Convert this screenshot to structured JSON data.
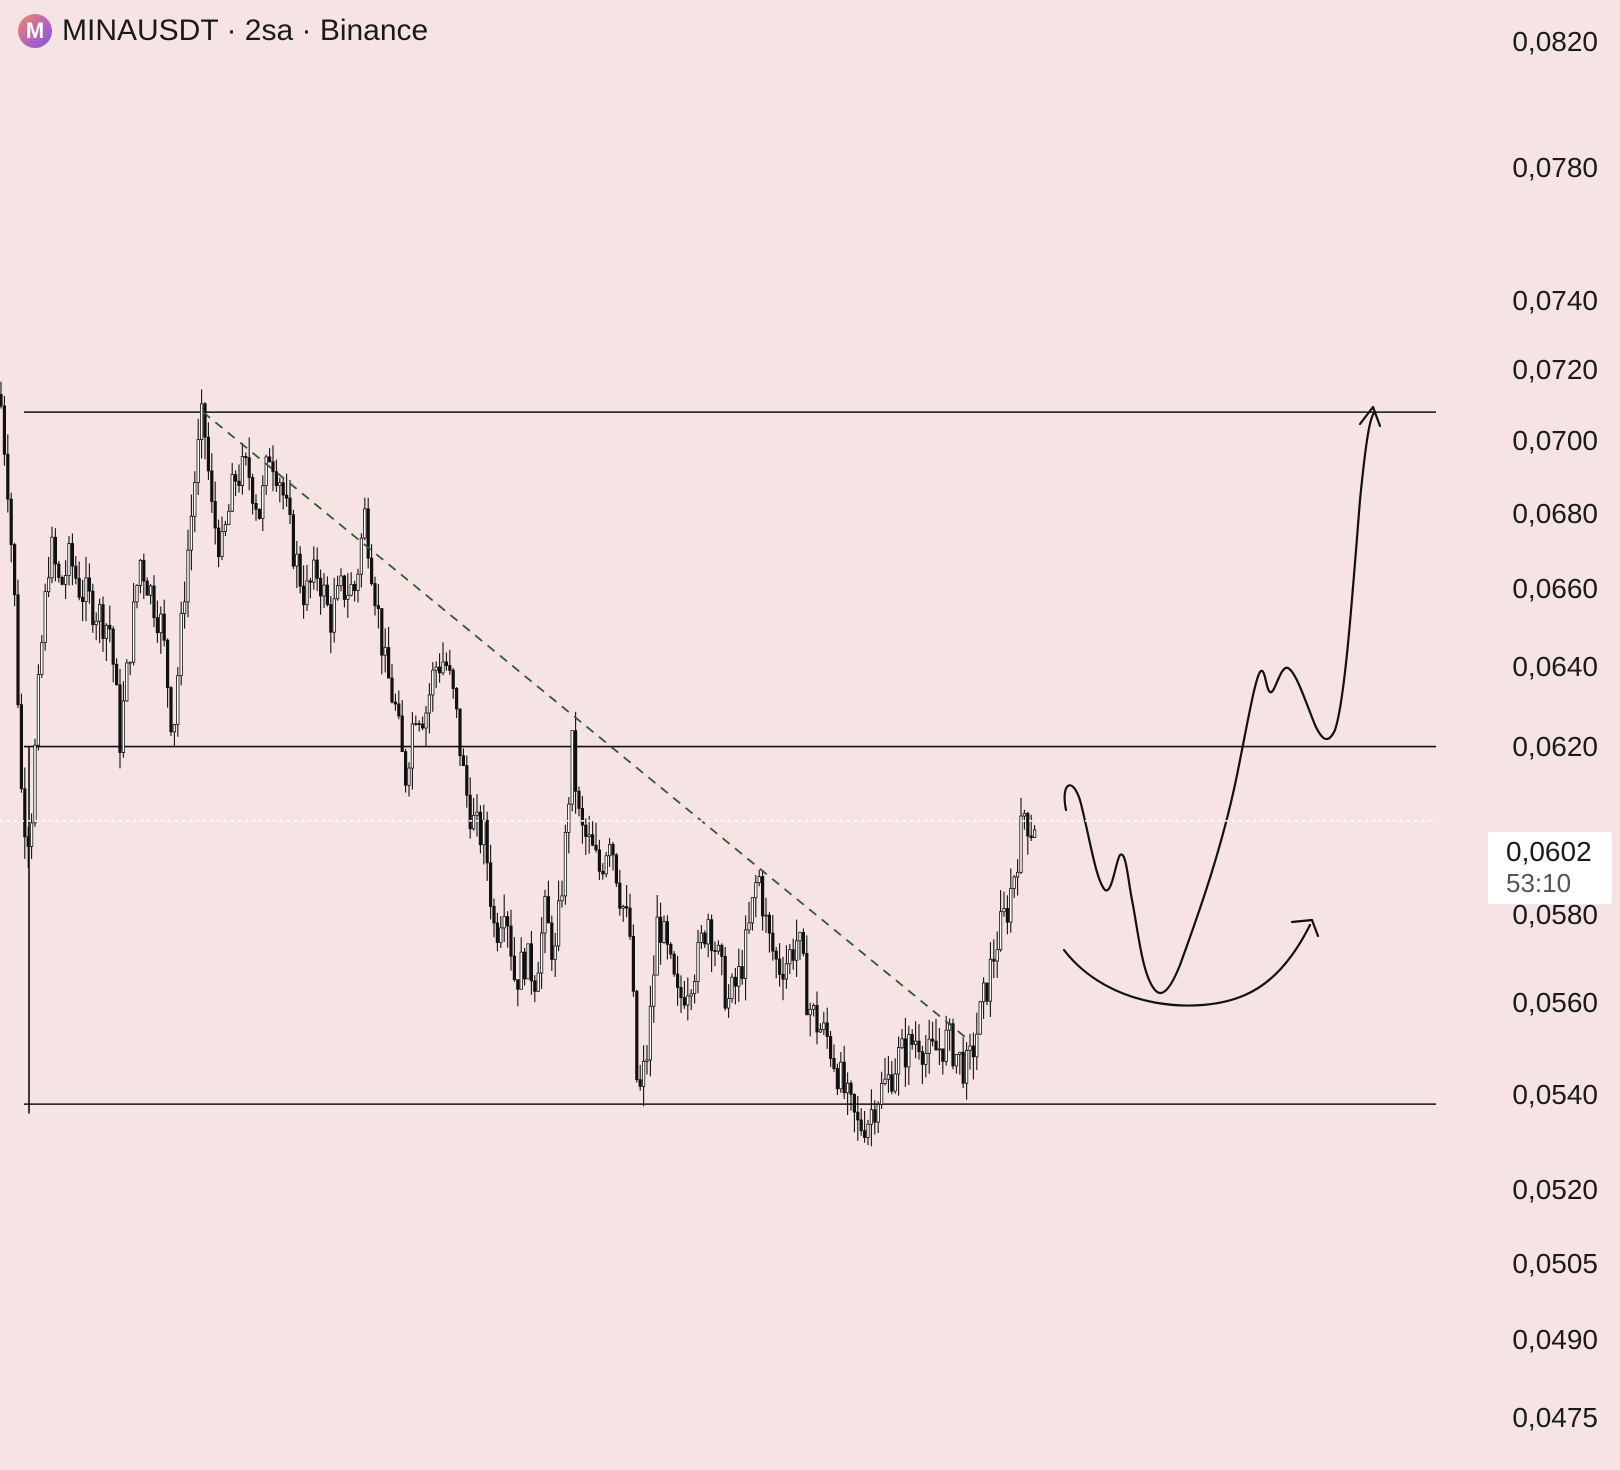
{
  "header": {
    "symbol": "MINAUSDT",
    "interval": "2sa",
    "exchange": "Binance",
    "title": "MINAUSDT · 2sa · Binance",
    "logo_letter": "M"
  },
  "colors": {
    "background": "#f6e4e5",
    "candle": "#111111",
    "trendline": "#2e5b2e",
    "drawing": "#111111"
  },
  "price_axis": {
    "ticks": [
      "0,0820",
      "0,0780",
      "0,0740",
      "0,0720",
      "0,0700",
      "0,0680",
      "0,0660",
      "0,0640",
      "0,0620",
      "0,0580",
      "0,0560",
      "0,0540",
      "0,0520",
      "0,0505",
      "0,0490",
      "0,0475"
    ],
    "scale": "log"
  },
  "last_price": {
    "value": "0,0602",
    "countdown": "53:10"
  },
  "chart_data": {
    "type": "candlestick",
    "symbol": "MINAUSDT",
    "interval": "2sa",
    "exchange": "Binance",
    "y_scale": "log",
    "ylim": [
      0.0475,
      0.0825
    ],
    "last_price": 0.0602,
    "path": [
      [
        0,
        0.0713
      ],
      [
        8,
        0.0688
      ],
      [
        15,
        0.0655
      ],
      [
        22,
        0.0605
      ],
      [
        30,
        0.0598
      ],
      [
        40,
        0.064
      ],
      [
        50,
        0.0672
      ],
      [
        60,
        0.066
      ],
      [
        70,
        0.0668
      ],
      [
        80,
        0.066
      ],
      [
        95,
        0.0655
      ],
      [
        110,
        0.065
      ],
      [
        120,
        0.0622
      ],
      [
        130,
        0.0645
      ],
      [
        140,
        0.0668
      ],
      [
        150,
        0.066
      ],
      [
        162,
        0.065
      ],
      [
        173,
        0.0623
      ],
      [
        185,
        0.0662
      ],
      [
        195,
        0.069
      ],
      [
        203,
        0.0708
      ],
      [
        212,
        0.068
      ],
      [
        222,
        0.067
      ],
      [
        235,
        0.069
      ],
      [
        248,
        0.0692
      ],
      [
        260,
        0.068
      ],
      [
        270,
        0.0698
      ],
      [
        280,
        0.069
      ],
      [
        292,
        0.0672
      ],
      [
        305,
        0.0658
      ],
      [
        318,
        0.0665
      ],
      [
        330,
        0.0652
      ],
      [
        342,
        0.066
      ],
      [
        355,
        0.066
      ],
      [
        365,
        0.068
      ],
      [
        375,
        0.066
      ],
      [
        385,
        0.064
      ],
      [
        395,
        0.063
      ],
      [
        405,
        0.0612
      ],
      [
        415,
        0.063
      ],
      [
        425,
        0.0628
      ],
      [
        435,
        0.064
      ],
      [
        445,
        0.0642
      ],
      [
        455,
        0.063
      ],
      [
        465,
        0.061
      ],
      [
        475,
        0.06
      ],
      [
        485,
        0.0598
      ],
      [
        495,
        0.0575
      ],
      [
        505,
        0.0585
      ],
      [
        515,
        0.0565
      ],
      [
        525,
        0.057
      ],
      [
        535,
        0.0566
      ],
      [
        545,
        0.058
      ],
      [
        555,
        0.057
      ],
      [
        565,
        0.0595
      ],
      [
        572,
        0.062
      ],
      [
        580,
        0.06
      ],
      [
        590,
        0.0596
      ],
      [
        600,
        0.059
      ],
      [
        610,
        0.06
      ],
      [
        620,
        0.0585
      ],
      [
        630,
        0.0575
      ],
      [
        638,
        0.0538
      ],
      [
        648,
        0.055
      ],
      [
        658,
        0.058
      ],
      [
        668,
        0.057
      ],
      [
        678,
        0.056
      ],
      [
        688,
        0.0565
      ],
      [
        698,
        0.057
      ],
      [
        708,
        0.058
      ],
      [
        718,
        0.057
      ],
      [
        728,
        0.056
      ],
      [
        738,
        0.0565
      ],
      [
        748,
        0.0575
      ],
      [
        758,
        0.059
      ],
      [
        768,
        0.0575
      ],
      [
        778,
        0.0568
      ],
      [
        788,
        0.057
      ],
      [
        798,
        0.0575
      ],
      [
        808,
        0.056
      ],
      [
        818,
        0.0555
      ],
      [
        828,
        0.0552
      ],
      [
        838,
        0.0545
      ],
      [
        848,
        0.0538
      ],
      [
        858,
        0.0533
      ],
      [
        868,
        0.0535
      ],
      [
        878,
        0.054
      ],
      [
        888,
        0.0543
      ],
      [
        898,
        0.0548
      ],
      [
        908,
        0.055
      ],
      [
        918,
        0.0553
      ],
      [
        928,
        0.0548
      ],
      [
        938,
        0.055
      ],
      [
        948,
        0.0552
      ],
      [
        958,
        0.0548
      ],
      [
        968,
        0.0545
      ],
      [
        978,
        0.0555
      ],
      [
        988,
        0.0565
      ],
      [
        998,
        0.0575
      ],
      [
        1008,
        0.0582
      ],
      [
        1018,
        0.0595
      ],
      [
        1025,
        0.0605
      ],
      [
        1030,
        0.06
      ],
      [
        1035,
        0.0602
      ]
    ],
    "horizontal_levels": [
      0.0708,
      0.062,
      0.0538
    ],
    "trendline": {
      "from": [
        203,
        0.0708
      ],
      "to": [
        968,
        0.0552
      ],
      "style": "dashed"
    },
    "drawings": [
      "scenario-arrow-up",
      "scenario-arc-arrow"
    ],
    "grid": false,
    "legend": "none"
  }
}
